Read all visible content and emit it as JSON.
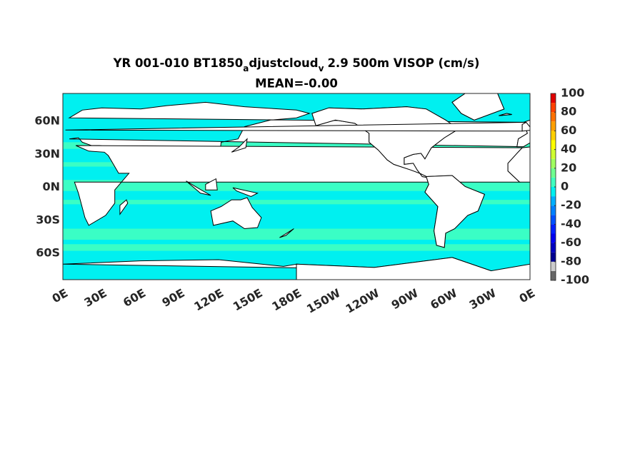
{
  "title": [
    "YR 001-010 BT1850",
    "a",
    "djustcloud",
    "v",
    "2.9 500m VISOP (cm/s)"
  ],
  "subtitle": "MEAN=-0.00",
  "map": {
    "lat_labels": [
      "60N",
      "30N",
      "0N",
      "30S",
      "60S"
    ],
    "lon_labels": [
      "0E",
      "30E",
      "60E",
      "90E",
      "120E",
      "150E",
      "180E",
      "150W",
      "120W",
      "90W",
      "60W",
      "30W",
      "0E"
    ]
  },
  "colorbar": {
    "lim": [
      -100,
      100
    ],
    "ticks": [
      100,
      80,
      60,
      40,
      20,
      0,
      -20,
      -40,
      -60,
      -80,
      -100
    ],
    "colors": [
      "#666666",
      "#cccccc",
      "#00008f",
      "#0000bf",
      "#0000ef",
      "#0020ff",
      "#0050ff",
      "#0080ff",
      "#00b0ff",
      "#00f0f0",
      "#40ffc0",
      "#70ff90",
      "#a0ff60",
      "#d0ff30",
      "#ffff00",
      "#ffd000",
      "#ffa000",
      "#ff7000",
      "#ff4000",
      "#e00000"
    ]
  }
}
